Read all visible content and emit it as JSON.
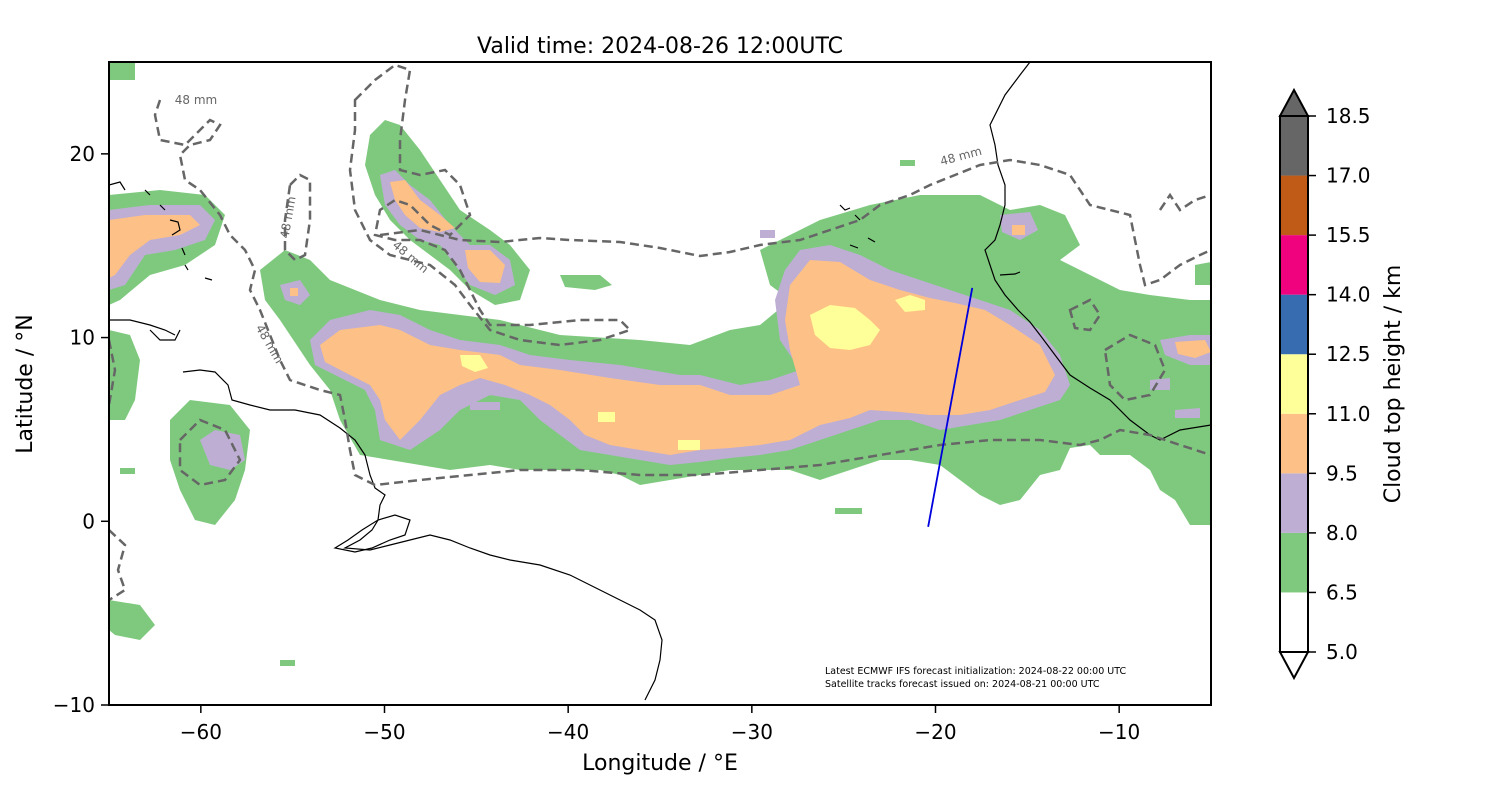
{
  "title": "Valid time: 2024-08-26 12:00UTC",
  "xlabel": "Longitude / °E",
  "ylabel": "Latitude / °N",
  "xlim": [
    -65,
    -5
  ],
  "ylim": [
    -10,
    25
  ],
  "xticks": [
    "−60",
    "−50",
    "−40",
    "−30",
    "−20",
    "−10"
  ],
  "yticks": [
    "−10",
    "0",
    "10",
    "20"
  ],
  "colorbar": {
    "label": "Cloud top height / km",
    "levels": [
      "5.0",
      "6.5",
      "8.0",
      "9.5",
      "11.0",
      "12.5",
      "14.0",
      "15.5",
      "17.0",
      "18.5"
    ],
    "colors": [
      "#ffffff",
      "#7fc97f",
      "#beaed4",
      "#fdc086",
      "#ffff99",
      "#386cb0",
      "#f0027f",
      "#bf5b17",
      "#666666"
    ]
  },
  "contour": {
    "label": "48 mm",
    "color": "#666666"
  },
  "satellite_track": {
    "color": "#0000dd",
    "start": {
      "lon": -20.4,
      "lat": -0.3
    },
    "end": {
      "lon": -18.0,
      "lat": 12.7
    }
  },
  "footnote": {
    "line1": "Latest ECMWF IFS forecast initialization: 2024-08-22 00:00 UTC",
    "line2": "Satellite tracks forecast issued on: 2024-08-21 00:00 UTC"
  }
}
